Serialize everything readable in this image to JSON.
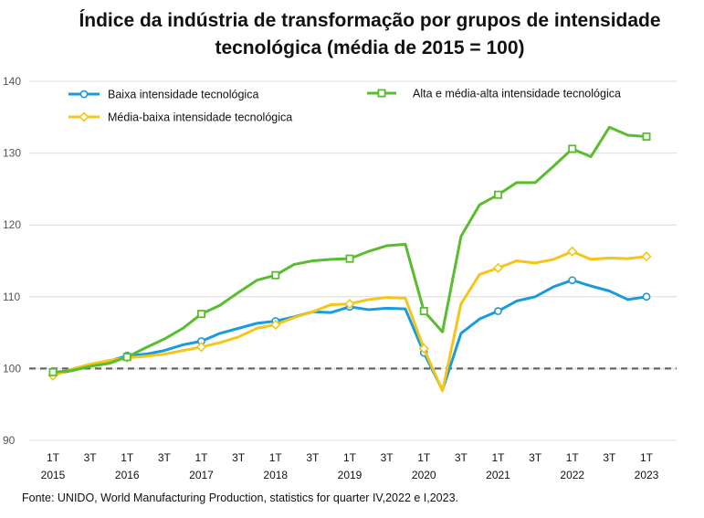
{
  "chart_data": {
    "type": "line",
    "title_lines": [
      "Índice da indústria de transformação por grupos de intensidade",
      "tecnológica (média de 2015 = 100)"
    ],
    "source": "Fonte: UNIDO, World Manufacturing Production, statistics for quarter IV,2022 e I,2023.",
    "ylim": [
      90,
      140
    ],
    "yticks": [
      "90",
      "100",
      "110",
      "120",
      "130",
      "140"
    ],
    "reference_line": 100,
    "grid": "horizontal",
    "legend_position": "top",
    "x": [
      "2015Q1",
      "2015Q2",
      "2015Q3",
      "2015Q4",
      "2016Q1",
      "2016Q2",
      "2016Q3",
      "2016Q4",
      "2017Q1",
      "2017Q2",
      "2017Q3",
      "2017Q4",
      "2018Q1",
      "2018Q2",
      "2018Q3",
      "2018Q4",
      "2019Q1",
      "2019Q2",
      "2019Q3",
      "2019Q4",
      "2020Q1",
      "2020Q2",
      "2020Q3",
      "2020Q4",
      "2021Q1",
      "2021Q2",
      "2021Q3",
      "2021Q4",
      "2022Q1",
      "2022Q2",
      "2022Q3",
      "2022Q4",
      "2023Q1"
    ],
    "x_tick_labels": [
      {
        "top": "1T",
        "bottom": "2015"
      },
      {
        "top": "3T",
        "bottom": ""
      },
      {
        "top": "1T",
        "bottom": "2016"
      },
      {
        "top": "3T",
        "bottom": ""
      },
      {
        "top": "1T",
        "bottom": "2017"
      },
      {
        "top": "3T",
        "bottom": ""
      },
      {
        "top": "1T",
        "bottom": "2018"
      },
      {
        "top": "3T",
        "bottom": ""
      },
      {
        "top": "1T",
        "bottom": "2019"
      },
      {
        "top": "3T",
        "bottom": ""
      },
      {
        "top": "1T",
        "bottom": "2020"
      },
      {
        "top": "3T",
        "bottom": ""
      },
      {
        "top": "1T",
        "bottom": "2021"
      },
      {
        "top": "3T",
        "bottom": ""
      },
      {
        "top": "1T",
        "bottom": "2022"
      },
      {
        "top": "3T",
        "bottom": ""
      },
      {
        "top": "1T",
        "bottom": "2023"
      }
    ],
    "series": [
      {
        "name": "Baixa intensidade tecnológica",
        "color": "#1a9bdc",
        "marker": "circle",
        "values": [
          99.2,
          99.7,
          100.3,
          101.0,
          101.8,
          102.0,
          102.5,
          103.3,
          103.8,
          104.9,
          105.6,
          106.3,
          106.6,
          107.2,
          107.9,
          107.8,
          108.6,
          108.2,
          108.4,
          108.3,
          102.2,
          97.0,
          104.9,
          106.9,
          108.0,
          109.4,
          110.0,
          111.4,
          112.3,
          111.5,
          110.8,
          109.6,
          110.0
        ]
      },
      {
        "name": "Alta e média-alta intensidade tecnológica",
        "color": "#5abd2f",
        "marker": "square",
        "values": [
          99.5,
          99.7,
          100.3,
          100.7,
          101.6,
          102.9,
          104.1,
          105.6,
          107.6,
          108.8,
          110.6,
          112.3,
          113.0,
          114.5,
          115.0,
          115.2,
          115.3,
          116.3,
          117.1,
          117.3,
          108.0,
          105.1,
          118.4,
          122.8,
          124.2,
          125.9,
          125.9,
          128.2,
          130.6,
          129.5,
          133.6,
          132.5,
          132.3
        ]
      },
      {
        "name": "Média-baixa intensidade tecnológica",
        "color": "#f5c518",
        "marker": "diamond",
        "values": [
          99.0,
          99.9,
          100.6,
          101.1,
          101.5,
          101.7,
          102.0,
          102.5,
          103.0,
          103.6,
          104.4,
          105.6,
          106.1,
          107.1,
          107.9,
          108.9,
          109.0,
          109.6,
          109.9,
          109.8,
          102.8,
          96.9,
          109.0,
          113.1,
          114.0,
          115.0,
          114.7,
          115.2,
          116.3,
          115.2,
          115.4,
          115.3,
          115.6
        ]
      }
    ]
  }
}
